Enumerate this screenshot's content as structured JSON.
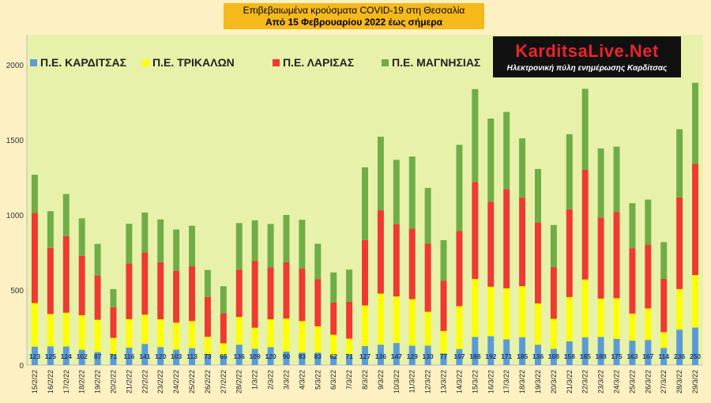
{
  "title": {
    "line1": "Επιβεβαιωμένα κρούσματα COVID-19 στη Θεσσαλία",
    "line2": "Από 15 Φεβρουαρίου 2022 έως σήμερα"
  },
  "logo": {
    "name": "KarditsaLive.Net",
    "tagline": "Ηλεκτρονική πύλη ενημέρωσης Καρδίτσας"
  },
  "colors": {
    "background": "#fdf1c4",
    "plot_background": "#e8f1a9",
    "title_box": "#f6b91c",
    "karditsa": "#5b9bd5",
    "trikala": "#ffff00",
    "larisa": "#ee3a31",
    "magnisia": "#70ad47"
  },
  "chart_data": {
    "type": "bar",
    "stacked": true,
    "title": "Επιβεβαιωμένα κρούσματα COVID-19 στη Θεσσαλία",
    "subtitle": "Από 15 Φεβρουαρίου 2022 έως σήμερα",
    "xlabel": "",
    "ylabel": "",
    "ylim": [
      0,
      2200
    ],
    "yticks": [
      0,
      500,
      1000,
      1500,
      2000
    ],
    "grid": false,
    "legend": "top-left",
    "categories": [
      "15/2/22",
      "16/2/22",
      "17/2/22",
      "18/2/22",
      "19/2/22",
      "20/2/22",
      "21/2/22",
      "22/2/22",
      "23/2/22",
      "24/2/22",
      "25/2/22",
      "26/2/22",
      "27/2/22",
      "28/2/22",
      "1/3/22",
      "2/3/22",
      "3/3/22",
      "4/3/22",
      "5/3/22",
      "6/3/22",
      "7/3/22",
      "8/3/22",
      "9/3/22",
      "10/3/22",
      "11/3/22",
      "12/3/22",
      "13/3/22",
      "14/3/22",
      "15/3/22",
      "16/3/22",
      "17/3/22",
      "18/3/22",
      "19/3/22",
      "20/3/22",
      "21/3/22",
      "22/3/22",
      "23/3/22",
      "24/3/22",
      "25/3/22",
      "26/3/22",
      "27/3/22",
      "28/3/22",
      "29/3/22"
    ],
    "series": [
      {
        "name": "Π.Ε. ΚΑΡΔΙΤΣΑΣ",
        "color": "#5b9bd5",
        "labeled": true,
        "values": [
          123,
          125,
          124,
          102,
          87,
          71,
          116,
          141,
          120,
          103,
          113,
          73,
          65,
          136,
          109,
          120,
          90,
          83,
          83,
          62,
          71,
          127,
          136,
          147,
          129,
          130,
          77,
          107,
          188,
          192,
          171,
          185,
          136,
          108,
          158,
          185,
          188,
          175,
          163,
          167,
          114,
          236,
          250
        ]
      },
      {
        "name": "Π.Ε. ΤΡΙΚΑΛΩΝ",
        "color": "#ffff00",
        "values": [
          290,
          215,
          225,
          230,
          215,
          110,
          190,
          195,
          185,
          180,
          180,
          115,
          80,
          185,
          140,
          185,
          220,
          210,
          175,
          140,
          105,
          270,
          340,
          310,
          310,
          225,
          150,
          285,
          385,
          330,
          340,
          340,
          275,
          200,
          295,
          385,
          255,
          270,
          180,
          210,
          105,
          270,
          350
        ]
      },
      {
        "name": "Π.Ε. ΛΑΡΙΣΑΣ",
        "color": "#ee3a31",
        "values": [
          600,
          440,
          510,
          395,
          295,
          205,
          370,
          415,
          380,
          345,
          365,
          265,
          200,
          315,
          445,
          345,
          375,
          350,
          315,
          215,
          245,
          435,
          555,
          480,
          470,
          455,
          335,
          500,
          645,
          565,
          660,
          590,
          540,
          345,
          585,
          730,
          540,
          575,
          435,
          425,
          355,
          610,
          740
        ]
      },
      {
        "name": "Π.Ε. ΜΑΓΝΗΣΙΑΣ",
        "color": "#70ad47",
        "values": [
          255,
          245,
          280,
          250,
          210,
          120,
          265,
          265,
          285,
          275,
          270,
          180,
          180,
          310,
          270,
          290,
          315,
          325,
          235,
          200,
          215,
          485,
          490,
          430,
          480,
          370,
          270,
          575,
          620,
          555,
          515,
          395,
          355,
          280,
          500,
          540,
          460,
          435,
          300,
          300,
          245,
          455,
          540
        ]
      }
    ]
  }
}
